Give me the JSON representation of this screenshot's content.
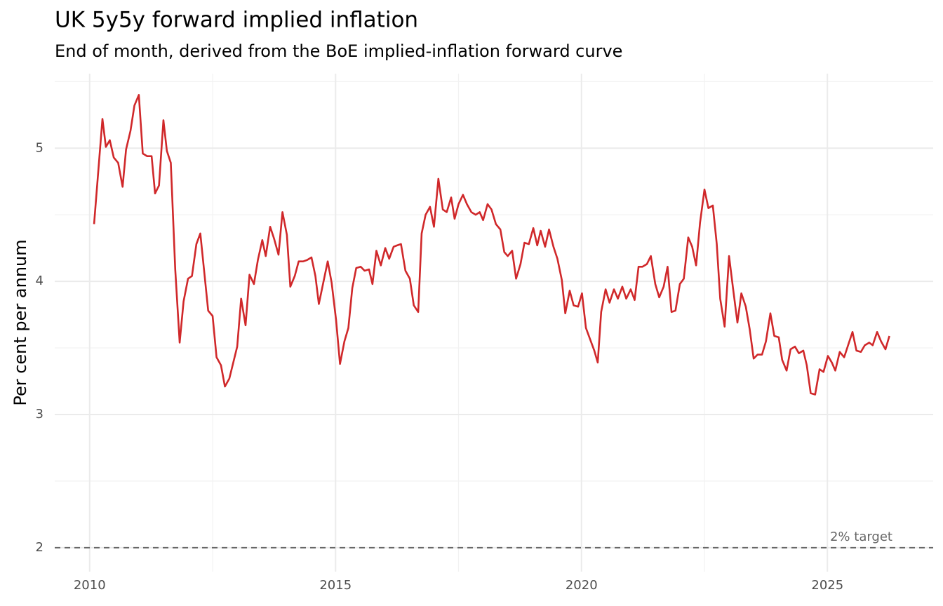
{
  "chart_data": {
    "type": "line",
    "title": "UK 5y5y forward implied inflation",
    "subtitle": "End of month, derived from the BoE implied-inflation forward curve",
    "y_label": "Per cent per annum",
    "color": "#d0282a",
    "grid": true,
    "xlim": [
      2009.29,
      2027.15
    ],
    "xticks": [
      2010,
      2015,
      2020,
      2025
    ],
    "ylim": [
      1.82,
      5.56
    ],
    "yticks": [
      2,
      3,
      4,
      5
    ],
    "reference_line": {
      "value": 2,
      "label": "2% target"
    },
    "x": [
      2010.09,
      2010.26,
      2010.33,
      2010.41,
      2010.49,
      2010.58,
      2010.67,
      2010.74,
      2010.83,
      2010.91,
      2011.0,
      2011.08,
      2011.17,
      2011.26,
      2011.33,
      2011.41,
      2011.5,
      2011.57,
      2011.65,
      2011.74,
      2011.83,
      2011.91,
      2012.0,
      2012.08,
      2012.17,
      2012.25,
      2012.33,
      2012.41,
      2012.5,
      2012.58,
      2012.67,
      2012.75,
      2012.84,
      2012.92,
      2013.0,
      2013.08,
      2013.17,
      2013.25,
      2013.34,
      2013.42,
      2013.51,
      2013.58,
      2013.67,
      2013.75,
      2013.84,
      2013.92,
      2014.01,
      2014.08,
      2014.17,
      2014.25,
      2014.34,
      2014.42,
      2014.51,
      2014.59,
      2014.66,
      2014.75,
      2014.84,
      2014.92,
      2015.01,
      2015.09,
      2015.18,
      2015.26,
      2015.34,
      2015.42,
      2015.51,
      2015.59,
      2015.68,
      2015.75,
      2015.83,
      2015.92,
      2016.01,
      2016.09,
      2016.18,
      2016.25,
      2016.33,
      2016.42,
      2016.51,
      2016.59,
      2016.68,
      2016.75,
      2016.83,
      2016.92,
      2017.0,
      2017.09,
      2017.18,
      2017.26,
      2017.35,
      2017.42,
      2017.5,
      2017.59,
      2017.67,
      2017.76,
      2017.85,
      2017.93,
      2018.0,
      2018.09,
      2018.17,
      2018.26,
      2018.35,
      2018.43,
      2018.5,
      2018.59,
      2018.67,
      2018.76,
      2018.84,
      2018.93,
      2019.02,
      2019.1,
      2019.17,
      2019.26,
      2019.34,
      2019.43,
      2019.51,
      2019.6,
      2019.67,
      2019.76,
      2019.84,
      2019.93,
      2020.01,
      2020.09,
      2020.17,
      2020.26,
      2020.33,
      2020.4,
      2020.49,
      2020.57,
      2020.66,
      2020.74,
      2020.83,
      2020.91,
      2021.0,
      2021.08,
      2021.16,
      2021.24,
      2021.33,
      2021.41,
      2021.5,
      2021.58,
      2021.67,
      2021.75,
      2021.83,
      2021.91,
      2022.0,
      2022.08,
      2022.17,
      2022.25,
      2022.33,
      2022.41,
      2022.5,
      2022.58,
      2022.67,
      2022.75,
      2022.82,
      2022.91,
      2023.0,
      2023.08,
      2023.17,
      2023.25,
      2023.34,
      2023.42,
      2023.5,
      2023.58,
      2023.67,
      2023.75,
      2023.84,
      2023.92,
      2024.01,
      2024.08,
      2024.17,
      2024.25,
      2024.34,
      2024.42,
      2024.51,
      2024.58,
      2024.66,
      2024.75,
      2024.84,
      2024.92,
      2025.01,
      2025.09,
      2025.16,
      2025.25,
      2025.34,
      2025.42,
      2025.51,
      2025.59,
      2025.68,
      2025.76,
      2025.85,
      2025.92,
      2026.01,
      2026.09,
      2026.18,
      2026.26
    ],
    "values": [
      4.43,
      5.22,
      5.01,
      5.06,
      4.93,
      4.89,
      4.71,
      4.99,
      5.13,
      5.32,
      5.4,
      4.96,
      4.94,
      4.94,
      4.66,
      4.72,
      5.21,
      4.98,
      4.89,
      4.09,
      3.54,
      3.85,
      4.02,
      4.04,
      4.28,
      4.36,
      4.07,
      3.78,
      3.74,
      3.43,
      3.37,
      3.21,
      3.27,
      3.39,
      3.51,
      3.87,
      3.67,
      4.05,
      3.98,
      4.16,
      4.31,
      4.19,
      4.41,
      4.32,
      4.2,
      4.52,
      4.35,
      3.96,
      4.04,
      4.15,
      4.15,
      4.16,
      4.18,
      4.04,
      3.83,
      3.99,
      4.15,
      3.99,
      3.71,
      3.38,
      3.55,
      3.65,
      3.95,
      4.1,
      4.11,
      4.08,
      4.09,
      3.98,
      4.23,
      4.12,
      4.25,
      4.17,
      4.26,
      4.27,
      4.28,
      4.08,
      4.02,
      3.82,
      3.77,
      4.36,
      4.5,
      4.56,
      4.41,
      4.77,
      4.54,
      4.52,
      4.63,
      4.47,
      4.58,
      4.65,
      4.58,
      4.52,
      4.5,
      4.52,
      4.46,
      4.58,
      4.54,
      4.43,
      4.39,
      4.22,
      4.19,
      4.23,
      4.02,
      4.13,
      4.29,
      4.28,
      4.4,
      4.27,
      4.38,
      4.26,
      4.39,
      4.26,
      4.17,
      4.01,
      3.76,
      3.93,
      3.82,
      3.81,
      3.91,
      3.65,
      3.57,
      3.48,
      3.39,
      3.77,
      3.94,
      3.84,
      3.94,
      3.87,
      3.96,
      3.87,
      3.94,
      3.86,
      4.11,
      4.11,
      4.13,
      4.19,
      3.98,
      3.88,
      3.96,
      4.11,
      3.77,
      3.78,
      3.98,
      4.02,
      4.33,
      4.26,
      4.12,
      4.44,
      4.69,
      4.55,
      4.57,
      4.28,
      3.87,
      3.66,
      4.19,
      3.95,
      3.69,
      3.91,
      3.81,
      3.64,
      3.42,
      3.45,
      3.45,
      3.55,
      3.76,
      3.59,
      3.58,
      3.41,
      3.33,
      3.49,
      3.51,
      3.46,
      3.48,
      3.37,
      3.16,
      3.15,
      3.34,
      3.32,
      3.44,
      3.39,
      3.33,
      3.47,
      3.43,
      3.52,
      3.62,
      3.48,
      3.47,
      3.52,
      3.54,
      3.52,
      3.62,
      3.55,
      3.49,
      3.59
    ]
  }
}
